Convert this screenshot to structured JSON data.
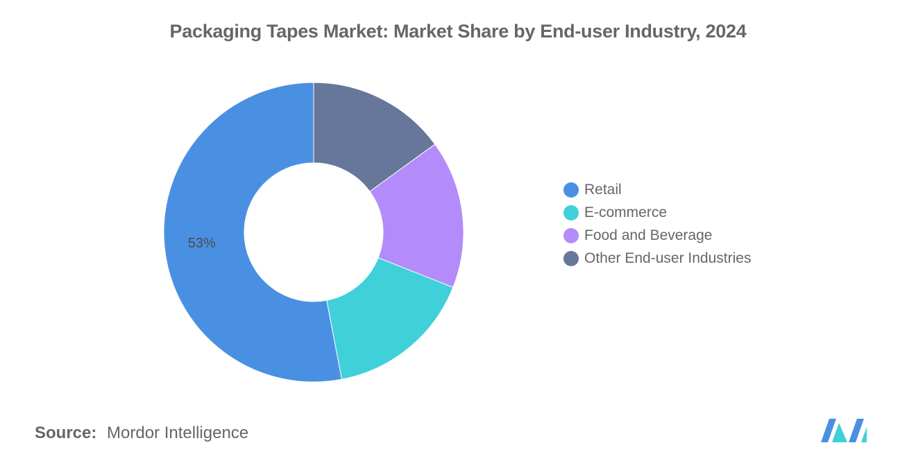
{
  "chart_data": {
    "type": "pie",
    "title": "Packaging Tapes Market: Market Share by End-user Industry, 2024",
    "categories": [
      "Retail",
      "E-commerce",
      "Food and Beverage",
      "Other End-user Industries"
    ],
    "values": [
      53,
      16,
      16,
      15
    ],
    "colors": [
      "#4A90E2",
      "#40D0DA",
      "#B38BFA",
      "#66779A"
    ],
    "data_labels": [
      "53%",
      "",
      "",
      ""
    ],
    "legend_position": "right",
    "style": "donut"
  },
  "source": {
    "label": "Source:",
    "value": "Mordor Intelligence"
  },
  "logo": {
    "icon": "mordor-intelligence-logo-icon",
    "colors": [
      "#4A90E2",
      "#40D0DA"
    ]
  }
}
